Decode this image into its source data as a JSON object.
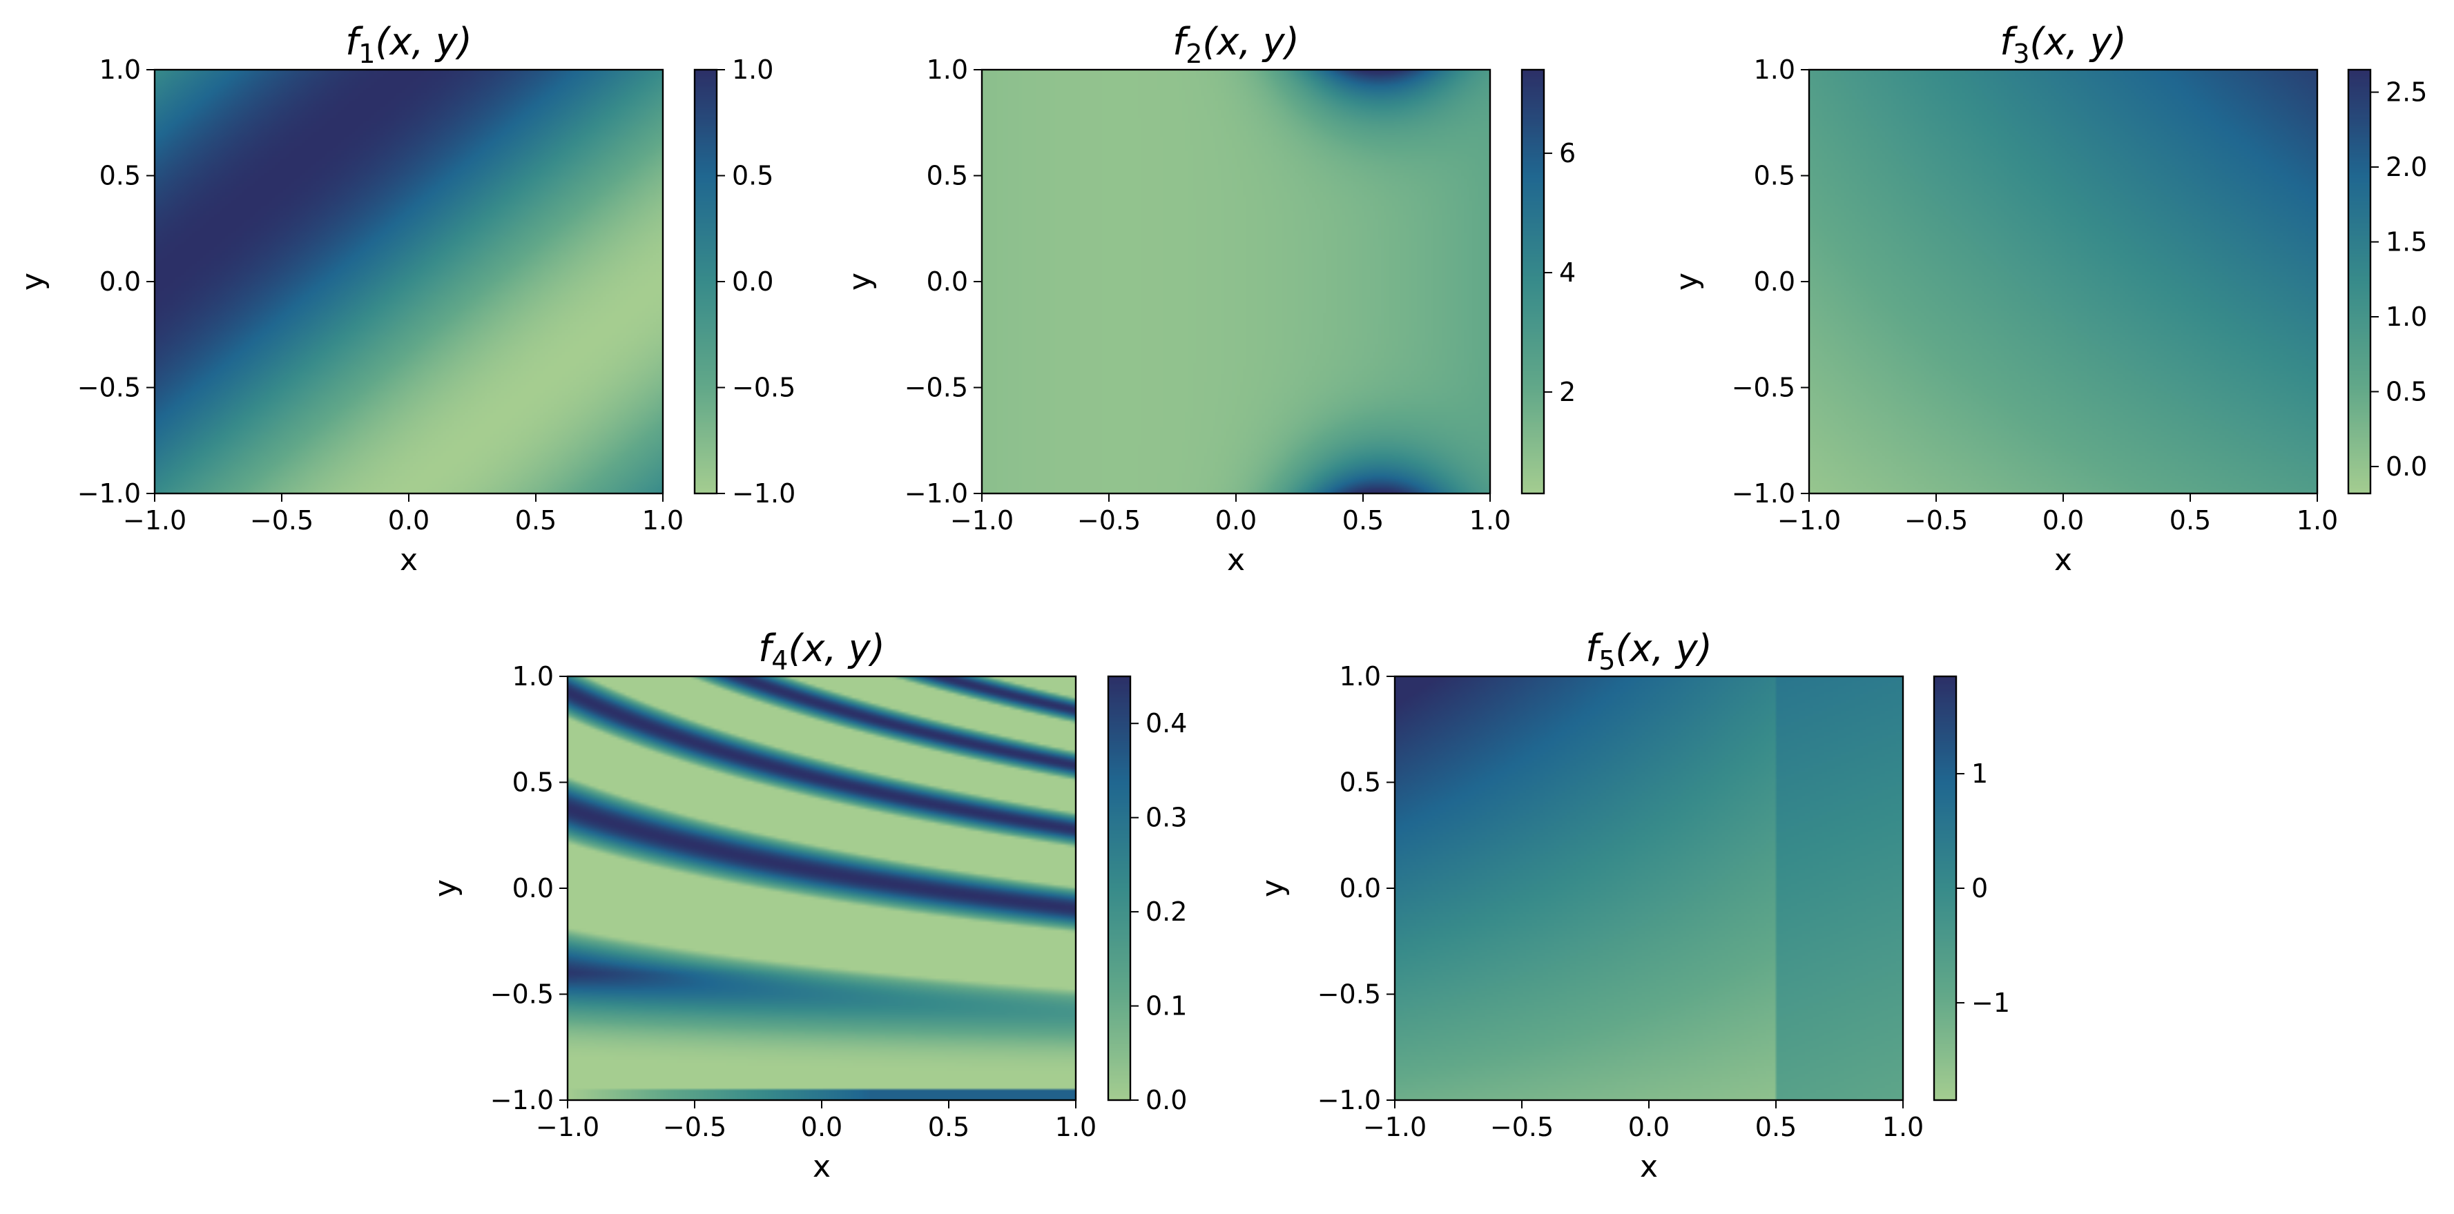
{
  "chart_data": [
    {
      "type": "heatmap",
      "title": "f1(x, y)",
      "title_main": "f",
      "title_sub": "1",
      "title_args": "(x, y)",
      "xlabel": "x",
      "ylabel": "y",
      "xlim": [
        -1.0,
        1.0
      ],
      "ylim": [
        -1.0,
        1.0
      ],
      "xticks": [
        -1.0,
        -0.5,
        0.0,
        0.5,
        1.0
      ],
      "xtick_labels": [
        "−1.0",
        "−0.5",
        "0.0",
        "0.5",
        "1.0"
      ],
      "yticks": [
        -1.0,
        -0.5,
        0.0,
        0.5,
        1.0
      ],
      "ytick_labels": [
        "−1.0",
        "−0.5",
        "0.0",
        "0.5",
        "1.0"
      ],
      "colorbar": {
        "range": [
          -1.0,
          1.0
        ],
        "ticks": [
          -1.0,
          -0.5,
          0.0,
          0.5,
          1.0
        ],
        "tick_labels": [
          "−1.0",
          "−0.5",
          "0.0",
          "0.5",
          "1.0"
        ]
      },
      "colormap": "crest",
      "grid": false
    },
    {
      "type": "heatmap",
      "title": "f2(x, y)",
      "title_main": "f",
      "title_sub": "2",
      "title_args": "(x, y)",
      "xlabel": "x",
      "ylabel": "y",
      "xlim": [
        -1.0,
        1.0
      ],
      "ylim": [
        -1.0,
        1.0
      ],
      "xticks": [
        -1.0,
        -0.5,
        0.0,
        0.5,
        1.0
      ],
      "xtick_labels": [
        "−1.0",
        "−0.5",
        "0.0",
        "0.5",
        "1.0"
      ],
      "yticks": [
        -1.0,
        -0.5,
        0.0,
        0.5,
        1.0
      ],
      "ytick_labels": [
        "−1.0",
        "−0.5",
        "0.0",
        "0.5",
        "1.0"
      ],
      "colorbar": {
        "range": [
          0.3,
          7.4
        ],
        "ticks": [
          2,
          4,
          6
        ],
        "tick_labels": [
          "2",
          "4",
          "6"
        ]
      },
      "colormap": "crest",
      "grid": false
    },
    {
      "type": "heatmap",
      "title": "f3(x, y)",
      "title_main": "f",
      "title_sub": "3",
      "title_args": "(x, y)",
      "xlabel": "x",
      "ylabel": "y",
      "xlim": [
        -1.0,
        1.0
      ],
      "ylim": [
        -1.0,
        1.0
      ],
      "xticks": [
        -1.0,
        -0.5,
        0.0,
        0.5,
        1.0
      ],
      "xtick_labels": [
        "−1.0",
        "−0.5",
        "0.0",
        "0.5",
        "1.0"
      ],
      "yticks": [
        -1.0,
        -0.5,
        0.0,
        0.5,
        1.0
      ],
      "ytick_labels": [
        "−1.0",
        "−0.5",
        "0.0",
        "0.5",
        "1.0"
      ],
      "colorbar": {
        "range": [
          -0.18,
          2.65
        ],
        "ticks": [
          0.0,
          0.5,
          1.0,
          1.5,
          2.0,
          2.5
        ],
        "tick_labels": [
          "0.0",
          "0.5",
          "1.0",
          "1.5",
          "2.0",
          "2.5"
        ]
      },
      "colormap": "crest",
      "grid": false
    },
    {
      "type": "heatmap",
      "title": "f4(x, y)",
      "title_main": "f",
      "title_sub": "4",
      "title_args": "(x, y)",
      "xlabel": "x",
      "ylabel": "y",
      "xlim": [
        -1.0,
        1.0
      ],
      "ylim": [
        -1.0,
        1.0
      ],
      "xticks": [
        -1.0,
        -0.5,
        0.0,
        0.5,
        1.0
      ],
      "xtick_labels": [
        "−1.0",
        "−0.5",
        "0.0",
        "0.5",
        "1.0"
      ],
      "yticks": [
        -1.0,
        -0.5,
        0.0,
        0.5,
        1.0
      ],
      "ytick_labels": [
        "−1.0",
        "−0.5",
        "0.0",
        "0.5",
        "1.0"
      ],
      "colorbar": {
        "range": [
          0.0,
          0.45
        ],
        "ticks": [
          0.0,
          0.1,
          0.2,
          0.3,
          0.4
        ],
        "tick_labels": [
          "0.0",
          "0.1",
          "0.2",
          "0.3",
          "0.4"
        ]
      },
      "colormap": "crest",
      "grid": false
    },
    {
      "type": "heatmap",
      "title": "f5(x, y)",
      "title_main": "f",
      "title_sub": "5",
      "title_args": "(x, y)",
      "xlabel": "x",
      "ylabel": "y",
      "xlim": [
        -1.0,
        1.0
      ],
      "ylim": [
        -1.0,
        1.0
      ],
      "xticks": [
        -1.0,
        -0.5,
        0.0,
        0.5,
        1.0
      ],
      "xtick_labels": [
        "−1.0",
        "−0.5",
        "0.0",
        "0.5",
        "1.0"
      ],
      "yticks": [
        -1.0,
        -0.5,
        0.0,
        0.5,
        1.0
      ],
      "ytick_labels": [
        "−1.0",
        "−0.5",
        "0.0",
        "0.5",
        "1.0"
      ],
      "colorbar": {
        "range": [
          -1.85,
          1.85
        ],
        "ticks": [
          -1,
          0,
          1
        ],
        "tick_labels": [
          "−1",
          "0",
          "1"
        ]
      },
      "colormap": "crest",
      "grid": false
    }
  ],
  "colors": {
    "low": "#a8cf8f",
    "mid": "#3b9187",
    "high": "#2b2f6c"
  }
}
